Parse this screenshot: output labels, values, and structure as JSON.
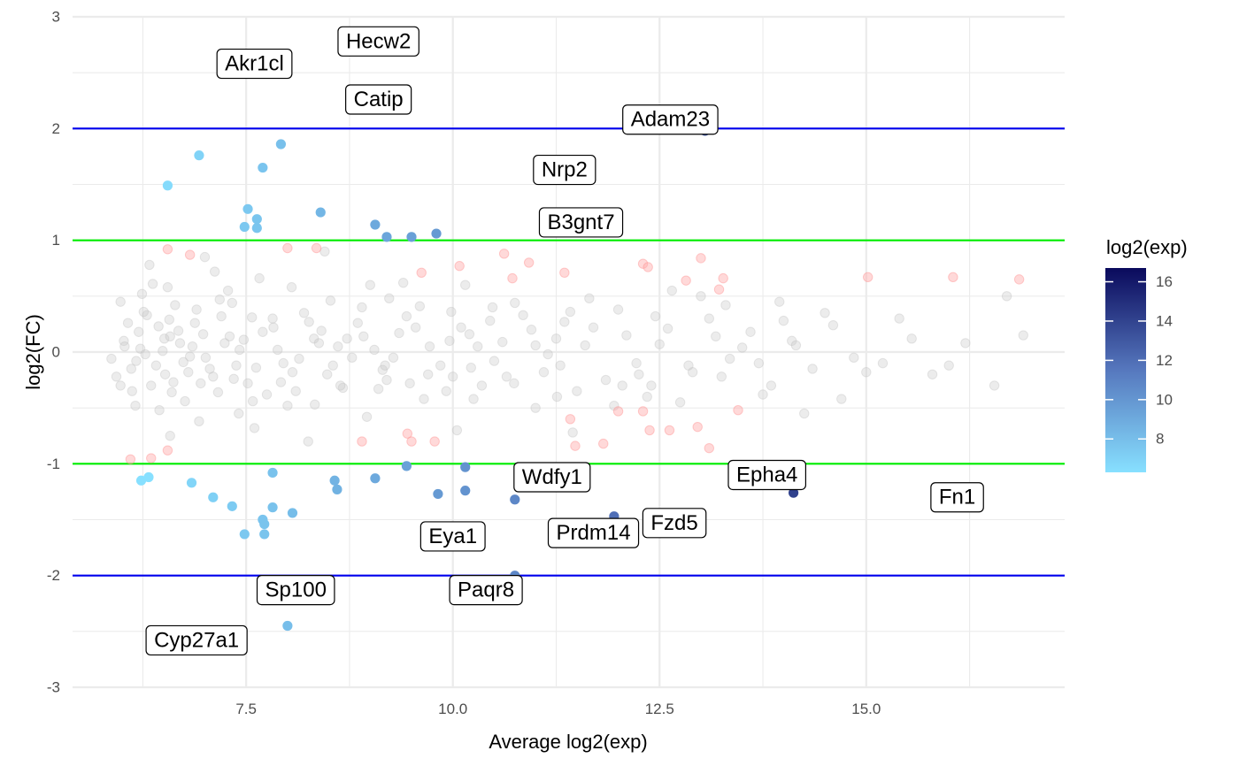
{
  "chart_data": {
    "type": "scatter",
    "title": "",
    "xlabel": "Average log2(exp)",
    "ylabel": "log2(FC)",
    "xlim": [
      5.4,
      17.4
    ],
    "ylim": [
      -3.0,
      3.0
    ],
    "x_ticks": [
      7.5,
      10.0,
      12.5,
      15.0
    ],
    "x_tick_labels": [
      "7.5",
      "10.0",
      "12.5",
      "15.0"
    ],
    "y_ticks": [
      -3,
      -2,
      -1,
      0,
      1,
      2,
      3
    ],
    "y_tick_labels": [
      "-3",
      "-2",
      "-1",
      "0",
      "1",
      "2",
      "3"
    ],
    "grid": true,
    "reference_lines": [
      {
        "y": 2,
        "color": "#0000ee"
      },
      {
        "y": -2,
        "color": "#0000ee"
      },
      {
        "y": 1,
        "color": "#00ee00"
      },
      {
        "y": -1,
        "color": "#00ee00"
      }
    ],
    "legend": {
      "title": "log2(exp)",
      "position": "right",
      "min": 6.3,
      "max": 16.7,
      "ticks": [
        8,
        10,
        12,
        14,
        16
      ],
      "tick_labels": [
        "8",
        "10",
        "12",
        "14",
        "16"
      ],
      "low_color": "#87e0ff",
      "high_color": "#0a0a5c"
    },
    "background_color": "#c8c8c8",
    "moderate_color": "#ffaaaa",
    "background_points": [
      [
        6.07,
        0.26
      ],
      [
        6.51,
        0.12
      ],
      [
        6.17,
        -0.08
      ],
      [
        6.62,
        -0.27
      ],
      [
        5.98,
        0.45
      ],
      [
        6.45,
        -0.52
      ],
      [
        6.3,
        0.33
      ],
      [
        6.85,
        0.05
      ],
      [
        6.12,
        -0.35
      ],
      [
        6.55,
        0.58
      ],
      [
        7.06,
        -0.15
      ],
      [
        6.9,
        0.38
      ],
      [
        7.3,
        0.14
      ],
      [
        6.41,
        -0.12
      ],
      [
        5.87,
        -0.06
      ],
      [
        6.76,
        -0.44
      ],
      [
        7.18,
        0.47
      ],
      [
        6.22,
        0.03
      ],
      [
        7.52,
        -0.28
      ],
      [
        7.83,
        0.22
      ],
      [
        6.68,
        0.19
      ],
      [
        7.41,
        -0.55
      ],
      [
        6.35,
        -0.3
      ],
      [
        6.02,
        0.1
      ],
      [
        7.95,
        -0.1
      ],
      [
        8.2,
        0.35
      ],
      [
        7.66,
        0.66
      ],
      [
        6.93,
        -0.62
      ],
      [
        8.48,
        -0.2
      ],
      [
        6.57,
        0.29
      ],
      [
        7.12,
        0.72
      ],
      [
        8.61,
        0.05
      ],
      [
        5.93,
        -0.22
      ],
      [
        6.24,
        0.52
      ],
      [
        7.75,
        -0.38
      ],
      [
        8.85,
        0.26
      ],
      [
        6.8,
        -0.18
      ],
      [
        9.1,
        -0.33
      ],
      [
        7.24,
        0.08
      ],
      [
        8.05,
        0.58
      ],
      [
        9.35,
        0.17
      ],
      [
        6.49,
        0.01
      ],
      [
        7.57,
        0.31
      ],
      [
        8.33,
        -0.47
      ],
      [
        9.6,
        0.41
      ],
      [
        6.16,
        -0.48
      ],
      [
        7.01,
        -0.05
      ],
      [
        8.72,
        0.12
      ],
      [
        9.85,
        -0.12
      ],
      [
        6.64,
        0.42
      ],
      [
        7.88,
        0.02
      ],
      [
        10.1,
        0.22
      ],
      [
        8.96,
        -0.58
      ],
      [
        7.35,
        -0.24
      ],
      [
        10.35,
        -0.3
      ],
      [
        6.98,
        0.16
      ],
      [
        9.23,
        0.48
      ],
      [
        8.14,
        -0.06
      ],
      [
        10.6,
        0.09
      ],
      [
        7.62,
        -0.14
      ],
      [
        9.48,
        -0.28
      ],
      [
        10.85,
        0.33
      ],
      [
        8.41,
        0.19
      ],
      [
        6.28,
        -0.02
      ],
      [
        11.1,
        -0.18
      ],
      [
        9.72,
        0.05
      ],
      [
        7.47,
        0.11
      ],
      [
        11.35,
        0.27
      ],
      [
        8.67,
        -0.32
      ],
      [
        10.25,
        -0.42
      ],
      [
        11.6,
        0.06
      ],
      [
        9.98,
        0.36
      ],
      [
        6.37,
        0.61
      ],
      [
        11.85,
        -0.25
      ],
      [
        8.9,
        0.4
      ],
      [
        10.5,
        -0.08
      ],
      [
        12.1,
        0.15
      ],
      [
        7.16,
        -0.36
      ],
      [
        9.15,
        -0.16
      ],
      [
        12.35,
        -0.4
      ],
      [
        10.75,
        0.44
      ],
      [
        8.26,
        0.27
      ],
      [
        12.6,
        0.21
      ],
      [
        11.0,
        -0.5
      ],
      [
        6.74,
        -0.09
      ],
      [
        12.85,
        -0.12
      ],
      [
        9.4,
        0.62
      ],
      [
        11.25,
        0.12
      ],
      [
        13.1,
        0.3
      ],
      [
        7.92,
        -0.27
      ],
      [
        11.5,
        -0.35
      ],
      [
        13.35,
        -0.06
      ],
      [
        10.0,
        -0.22
      ],
      [
        12.0,
        0.38
      ],
      [
        13.6,
        0.18
      ],
      [
        8.55,
        -0.12
      ],
      [
        12.25,
        -0.2
      ],
      [
        13.85,
        -0.3
      ],
      [
        10.45,
        0.28
      ],
      [
        12.5,
        0.07
      ],
      [
        14.1,
        0.1
      ],
      [
        9.05,
        0.02
      ],
      [
        12.75,
        -0.45
      ],
      [
        14.35,
        -0.15
      ],
      [
        11.15,
        -0.02
      ],
      [
        13.0,
        0.5
      ],
      [
        14.6,
        0.24
      ],
      [
        7.28,
        0.55
      ],
      [
        13.25,
        -0.22
      ],
      [
        14.85,
        -0.05
      ],
      [
        11.7,
        0.22
      ],
      [
        13.5,
        0.04
      ],
      [
        15.2,
        -0.1
      ],
      [
        10.15,
        0.6
      ],
      [
        13.75,
        -0.38
      ],
      [
        15.55,
        0.12
      ],
      [
        12.4,
        -0.3
      ],
      [
        14.0,
        0.28
      ],
      [
        15.8,
        -0.2
      ],
      [
        6.44,
        0.23
      ],
      [
        14.25,
        -0.55
      ],
      [
        16.2,
        0.08
      ],
      [
        11.95,
        -0.48
      ],
      [
        14.5,
        0.35
      ],
      [
        16.55,
        -0.3
      ],
      [
        9.65,
        -0.42
      ],
      [
        15.0,
        -0.18
      ],
      [
        16.9,
        0.15
      ],
      [
        8.0,
        -0.48
      ],
      [
        5.98,
        -0.3
      ],
      [
        6.88,
        0.26
      ],
      [
        6.2,
        0.18
      ],
      [
        6.6,
        -0.36
      ],
      [
        7.42,
        0.02
      ],
      [
        8.32,
        0.12
      ],
      [
        9.28,
        -0.05
      ],
      [
        10.2,
        0.16
      ],
      [
        11.42,
        0.36
      ],
      [
        12.22,
        -0.1
      ],
      [
        13.18,
        0.14
      ],
      [
        6.03,
        0.05
      ],
      [
        6.11,
        -0.15
      ],
      [
        6.52,
        -0.2
      ],
      [
        6.7,
        0.08
      ],
      [
        6.95,
        -0.28
      ],
      [
        7.2,
        0.32
      ],
      [
        7.38,
        -0.12
      ],
      [
        7.7,
        0.18
      ],
      [
        8.1,
        -0.35
      ],
      [
        8.52,
        0.46
      ],
      [
        8.78,
        -0.05
      ],
      [
        9.2,
        -0.25
      ],
      [
        9.55,
        0.22
      ],
      [
        9.92,
        -0.35
      ],
      [
        10.3,
        0.05
      ],
      [
        10.65,
        -0.22
      ],
      [
        10.95,
        0.2
      ],
      [
        11.3,
        -0.12
      ],
      [
        11.65,
        0.48
      ],
      [
        12.05,
        -0.3
      ],
      [
        12.45,
        0.32
      ],
      [
        12.9,
        -0.18
      ],
      [
        13.3,
        0.42
      ],
      [
        13.7,
        -0.1
      ],
      [
        14.15,
        0.06
      ],
      [
        14.7,
        -0.42
      ],
      [
        15.4,
        0.3
      ],
      [
        16.0,
        -0.12
      ],
      [
        16.7,
        0.5
      ],
      [
        6.33,
        0.78
      ],
      [
        7.0,
        0.85
      ],
      [
        7.6,
        -0.68
      ],
      [
        8.25,
        -0.8
      ],
      [
        9.0,
        0.6
      ],
      [
        6.58,
        -0.75
      ],
      [
        8.45,
        0.9
      ],
      [
        10.05,
        -0.7
      ],
      [
        11.45,
        -0.72
      ],
      [
        12.65,
        0.55
      ],
      [
        13.95,
        0.45
      ],
      [
        6.26,
        0.36
      ],
      [
        6.58,
        0.14
      ],
      [
        6.82,
        -0.04
      ],
      [
        7.1,
        -0.22
      ],
      [
        7.33,
        0.44
      ],
      [
        7.58,
        -0.44
      ],
      [
        7.82,
        0.3
      ],
      [
        8.06,
        -0.18
      ],
      [
        8.38,
        0.08
      ],
      [
        8.64,
        -0.3
      ],
      [
        8.92,
        0.14
      ],
      [
        9.18,
        -0.12
      ],
      [
        9.44,
        0.32
      ],
      [
        9.7,
        -0.2
      ],
      [
        9.96,
        0.1
      ],
      [
        10.22,
        -0.14
      ],
      [
        10.48,
        0.4
      ],
      [
        10.74,
        -0.28
      ],
      [
        11.0,
        0.06
      ],
      [
        11.26,
        -0.4
      ]
    ],
    "moderate_points": [
      [
        6.55,
        0.92
      ],
      [
        6.82,
        0.87
      ],
      [
        8.0,
        0.93
      ],
      [
        8.35,
        0.93
      ],
      [
        6.1,
        -0.96
      ],
      [
        6.35,
        -0.95
      ],
      [
        6.55,
        -0.88
      ],
      [
        9.62,
        0.71
      ],
      [
        10.08,
        0.77
      ],
      [
        10.62,
        0.88
      ],
      [
        10.72,
        0.66
      ],
      [
        10.92,
        0.8
      ],
      [
        11.35,
        0.71
      ],
      [
        12.3,
        0.79
      ],
      [
        12.36,
        0.76
      ],
      [
        12.82,
        0.64
      ],
      [
        13.0,
        0.84
      ],
      [
        13.22,
        0.56
      ],
      [
        13.27,
        0.66
      ],
      [
        15.02,
        0.67
      ],
      [
        16.05,
        0.67
      ],
      [
        16.85,
        0.65
      ],
      [
        8.9,
        -0.8
      ],
      [
        9.45,
        -0.73
      ],
      [
        9.5,
        -0.8
      ],
      [
        9.78,
        -0.8
      ],
      [
        11.42,
        -0.6
      ],
      [
        11.48,
        -0.84
      ],
      [
        11.82,
        -0.82
      ],
      [
        12.0,
        -0.53
      ],
      [
        12.3,
        -0.53
      ],
      [
        12.38,
        -0.7
      ],
      [
        12.62,
        -0.7
      ],
      [
        12.96,
        -0.67
      ],
      [
        13.1,
        -0.86
      ],
      [
        13.45,
        -0.52
      ]
    ],
    "highlight_points": [
      [
        6.55,
        1.49
      ],
      [
        6.93,
        1.76
      ],
      [
        7.48,
        1.12
      ],
      [
        7.52,
        1.28
      ],
      [
        7.63,
        1.11
      ],
      [
        7.63,
        1.19
      ],
      [
        7.7,
        1.65
      ],
      [
        7.92,
        1.86
      ],
      [
        8.4,
        1.25
      ],
      [
        9.06,
        1.14
      ],
      [
        9.2,
        1.03
      ],
      [
        9.5,
        1.03
      ],
      [
        9.8,
        1.06
      ],
      [
        11.38,
        1.16
      ],
      [
        11.42,
        1.18
      ],
      [
        6.23,
        -1.15
      ],
      [
        6.32,
        -1.12
      ],
      [
        6.84,
        -1.17
      ],
      [
        7.1,
        -1.3
      ],
      [
        7.33,
        -1.38
      ],
      [
        7.48,
        -1.63
      ],
      [
        7.7,
        -1.5
      ],
      [
        7.72,
        -1.54
      ],
      [
        7.72,
        -1.63
      ],
      [
        7.82,
        -1.08
      ],
      [
        7.82,
        -1.39
      ],
      [
        8.06,
        -1.44
      ],
      [
        8.57,
        -1.15
      ],
      [
        8.6,
        -1.23
      ],
      [
        9.06,
        -1.13
      ],
      [
        9.44,
        -1.02
      ],
      [
        9.82,
        -1.27
      ],
      [
        10.15,
        -1.03
      ],
      [
        10.15,
        -1.24
      ],
      [
        10.75,
        -1.32
      ],
      [
        10.75,
        -2.0
      ],
      [
        11.95,
        -1.47
      ],
      [
        8.0,
        -2.45
      ],
      [
        14.12,
        -1.26
      ],
      [
        13.05,
        1.98
      ]
    ],
    "labels": [
      {
        "text": "Hecw2",
        "x": 9.1,
        "y": 2.78
      },
      {
        "text": "Akr1cl",
        "x": 7.6,
        "y": 2.58
      },
      {
        "text": "Catip",
        "x": 9.1,
        "y": 2.26
      },
      {
        "text": "Adam23",
        "x": 12.63,
        "y": 2.08
      },
      {
        "text": "Nrp2",
        "x": 11.35,
        "y": 1.63
      },
      {
        "text": "B3gnt7",
        "x": 11.55,
        "y": 1.16
      },
      {
        "text": "Wdfy1",
        "x": 11.2,
        "y": -1.12
      },
      {
        "text": "Epha4",
        "x": 13.8,
        "y": -1.1
      },
      {
        "text": "Fn1",
        "x": 16.1,
        "y": -1.3
      },
      {
        "text": "Fzd5",
        "x": 12.68,
        "y": -1.53
      },
      {
        "text": "Prdm14",
        "x": 11.7,
        "y": -1.62
      },
      {
        "text": "Eya1",
        "x": 10.0,
        "y": -1.65
      },
      {
        "text": "Sp100",
        "x": 8.1,
        "y": -2.13
      },
      {
        "text": "Paqr8",
        "x": 10.4,
        "y": -2.13
      },
      {
        "text": "Cyp27a1",
        "x": 6.9,
        "y": -2.58
      }
    ]
  }
}
